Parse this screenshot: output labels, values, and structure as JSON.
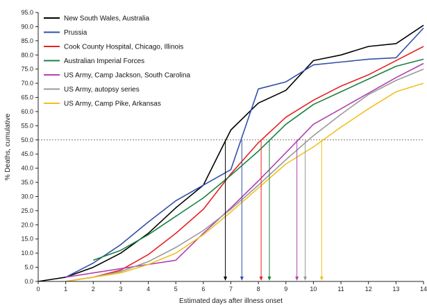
{
  "chart_data": {
    "type": "line",
    "xlabel": "Estimated days after illness onset",
    "ylabel": "% Deaths, cumulative",
    "xlim": [
      0,
      14
    ],
    "ylim": [
      0,
      95
    ],
    "x_ticks": [
      "0",
      "1",
      "2",
      "3",
      "4",
      "5",
      "6",
      "7",
      "8",
      "9",
      "10",
      "11",
      "12",
      "13",
      "14"
    ],
    "y_ticks": [
      "0.0",
      "5.0",
      "10.0",
      "15.0",
      "20.0",
      "25.0",
      "30.0",
      "35.0",
      "40.0",
      "45.0",
      "50.0",
      "55.0",
      "60.0",
      "65.0",
      "70.0",
      "75.0",
      "80.0",
      "85.0",
      "90.0",
      "95.0"
    ],
    "reference_y": 50,
    "legend_position": "top-left",
    "grid": false,
    "series": [
      {
        "name": "New South Wales, Australia",
        "color": "#000000",
        "median_day": 6.8,
        "points": [
          [
            0,
            0
          ],
          [
            1,
            1.5
          ],
          [
            2,
            5
          ],
          [
            3,
            10
          ],
          [
            4,
            17
          ],
          [
            5,
            26
          ],
          [
            6,
            34
          ],
          [
            7,
            53.5
          ],
          [
            8,
            63
          ],
          [
            9,
            67.5
          ],
          [
            10,
            78
          ],
          [
            11,
            80
          ],
          [
            12,
            83
          ],
          [
            13,
            84
          ],
          [
            14,
            90.5
          ]
        ]
      },
      {
        "name": "Prussia",
        "color": "#3050a8",
        "median_day": 7.4,
        "points": [
          [
            1,
            1.5
          ],
          [
            2,
            6.5
          ],
          [
            3,
            13
          ],
          [
            4,
            21
          ],
          [
            5,
            28.5
          ],
          [
            6,
            34
          ],
          [
            7,
            39.5
          ],
          [
            8,
            68
          ],
          [
            9,
            70.5
          ],
          [
            10,
            76.5
          ],
          [
            11,
            77.5
          ],
          [
            12,
            78.5
          ],
          [
            13,
            79
          ],
          [
            14,
            89.5
          ]
        ]
      },
      {
        "name": "Cook County Hospital, Chicago, Illinois",
        "color": "#e82020",
        "median_day": 8.1,
        "points": [
          [
            1,
            0
          ],
          [
            2,
            1.5
          ],
          [
            3,
            4
          ],
          [
            4,
            9.5
          ],
          [
            5,
            17
          ],
          [
            6,
            25.5
          ],
          [
            7,
            38
          ],
          [
            8,
            49
          ],
          [
            9,
            58
          ],
          [
            10,
            64
          ],
          [
            11,
            69
          ],
          [
            12,
            73
          ],
          [
            13,
            78
          ],
          [
            14,
            83
          ]
        ]
      },
      {
        "name": "Australian Imperial Forces",
        "color": "#1a8040",
        "median_day": 8.4,
        "points": [
          [
            2,
            7.5
          ],
          [
            3,
            11
          ],
          [
            4,
            16.5
          ],
          [
            5,
            23
          ],
          [
            6,
            29.5
          ],
          [
            7,
            37.5
          ],
          [
            8,
            46
          ],
          [
            9,
            55.5
          ],
          [
            10,
            62.5
          ],
          [
            11,
            67
          ],
          [
            12,
            71.5
          ],
          [
            13,
            76
          ],
          [
            14,
            78.5
          ]
        ]
      },
      {
        "name": "US Army, Camp Jackson, South Carolina",
        "color": "#b040b0",
        "median_day": 9.4,
        "points": [
          [
            1,
            1.5
          ],
          [
            2,
            3
          ],
          [
            3,
            4.5
          ],
          [
            4,
            6
          ],
          [
            5,
            7.5
          ],
          [
            6,
            17
          ],
          [
            7,
            26
          ],
          [
            8,
            35.5
          ],
          [
            9,
            45.5
          ],
          [
            10,
            55.5
          ],
          [
            11,
            61
          ],
          [
            12,
            66.5
          ],
          [
            13,
            72
          ],
          [
            14,
            77
          ]
        ]
      },
      {
        "name": "US Army, autopsy series",
        "color": "#999999",
        "median_day": 9.7,
        "points": [
          [
            1,
            0
          ],
          [
            2,
            1.5
          ],
          [
            3,
            3.5
          ],
          [
            4,
            7
          ],
          [
            5,
            12
          ],
          [
            6,
            18
          ],
          [
            7,
            25.5
          ],
          [
            8,
            34
          ],
          [
            9,
            43
          ],
          [
            10,
            51.5
          ],
          [
            11,
            59
          ],
          [
            12,
            66
          ],
          [
            13,
            71
          ],
          [
            14,
            75
          ]
        ]
      },
      {
        "name": "US Army, Camp Pike, Arkansas",
        "color": "#f0c020",
        "median_day": 10.3,
        "points": [
          [
            1,
            0
          ],
          [
            2,
            1.5
          ],
          [
            3,
            3
          ],
          [
            4,
            6
          ],
          [
            5,
            10
          ],
          [
            6,
            16.5
          ],
          [
            7,
            24.5
          ],
          [
            8,
            33
          ],
          [
            9,
            41.5
          ],
          [
            10,
            47.5
          ],
          [
            11,
            54.5
          ],
          [
            12,
            61
          ],
          [
            13,
            67
          ],
          [
            14,
            70
          ]
        ]
      }
    ]
  }
}
